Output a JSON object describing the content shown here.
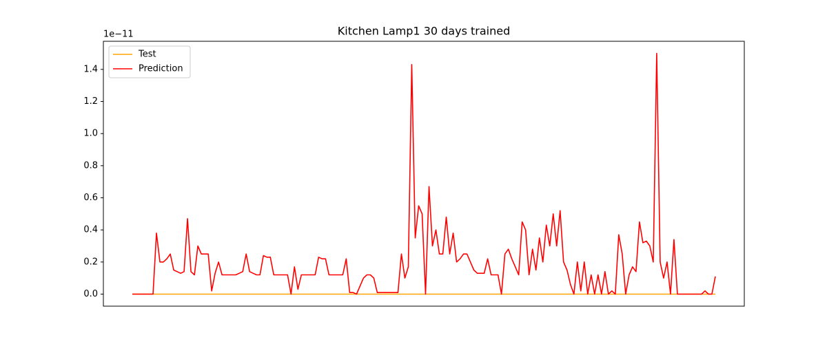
{
  "chart_data": {
    "type": "line",
    "title": "Kitchen Lamp1 30 days trained",
    "y_offset_label": "1e−11",
    "ylim": [
      -0.075,
      1.575
    ],
    "yticks": [
      {
        "value": 0,
        "label": "0.0"
      },
      0.2,
      0.4,
      0.6,
      0.8,
      {
        "value": 1,
        "label": "1.0"
      },
      1.2,
      1.4
    ],
    "legend": "upper left",
    "grid": false,
    "series": [
      {
        "name": "Test",
        "color": "#ffa500",
        "values": [
          0,
          0,
          0,
          0,
          0,
          0,
          0,
          0,
          0,
          0,
          0,
          0,
          0,
          0,
          0,
          0,
          0,
          0,
          0,
          0,
          0,
          0,
          0,
          0,
          0,
          0,
          0,
          0,
          0,
          0,
          0,
          0,
          0,
          0,
          0,
          0,
          0,
          0,
          0,
          0,
          0,
          0,
          0,
          0,
          0,
          0,
          0,
          0,
          0,
          0,
          0,
          0,
          0,
          0,
          0,
          0,
          0,
          0,
          0,
          0,
          0,
          0,
          0,
          0,
          0,
          0,
          0,
          0,
          0,
          0,
          0,
          0,
          0,
          0,
          0,
          0,
          0,
          0,
          0,
          0,
          0,
          0,
          0,
          0,
          0,
          0,
          0,
          0,
          0,
          0,
          0,
          0,
          0,
          0,
          0,
          0,
          0,
          0,
          0,
          0,
          0,
          0,
          0,
          0,
          0,
          0,
          0,
          0,
          0,
          0,
          0,
          0,
          0,
          0,
          0,
          0,
          0,
          0,
          0,
          0,
          0,
          0,
          0,
          0,
          0,
          0,
          0,
          0,
          0,
          0,
          0,
          0,
          0,
          0,
          0,
          0,
          0,
          0,
          0,
          0,
          0,
          0,
          0,
          0,
          0,
          0,
          0,
          0,
          0,
          0,
          0,
          0,
          0,
          0,
          0,
          0,
          0,
          0,
          0,
          0,
          0,
          0,
          0,
          0,
          0,
          0,
          0,
          0,
          0,
          0
        ]
      },
      {
        "name": "Prediction",
        "color": "#ff0000",
        "values": [
          0,
          0,
          0,
          0,
          0,
          0,
          0,
          0.38,
          0.2,
          0.2,
          0.22,
          0.25,
          0.15,
          0.14,
          0.13,
          0.14,
          0.47,
          0.14,
          0.12,
          0.3,
          0.25,
          0.25,
          0.25,
          0.02,
          0.13,
          0.2,
          0.12,
          0.12,
          0.12,
          0.12,
          0.12,
          0.13,
          0.14,
          0.25,
          0.14,
          0.13,
          0.12,
          0.12,
          0.24,
          0.23,
          0.23,
          0.12,
          0.12,
          0.12,
          0.12,
          0.12,
          0,
          0.17,
          0.03,
          0.12,
          0.12,
          0.12,
          0.12,
          0.12,
          0.23,
          0.22,
          0.22,
          0.12,
          0.12,
          0.12,
          0.12,
          0.12,
          0.22,
          0.01,
          0.01,
          0,
          0.05,
          0.1,
          0.12,
          0.12,
          0.1,
          0.01,
          0.01,
          0.01,
          0.01,
          0.01,
          0.01,
          0.01,
          0.25,
          0.1,
          0.17,
          1.43,
          0.35,
          0.55,
          0.5,
          0,
          0.67,
          0.3,
          0.4,
          0.25,
          0.25,
          0.48,
          0.25,
          0.38,
          0.2,
          0.22,
          0.25,
          0.25,
          0.2,
          0.15,
          0.13,
          0.13,
          0.13,
          0.22,
          0.12,
          0.12,
          0.12,
          0,
          0.25,
          0.28,
          0.22,
          0.17,
          0.12,
          0.45,
          0.4,
          0.12,
          0.28,
          0.15,
          0.35,
          0.2,
          0.43,
          0.3,
          0.5,
          0.3,
          0.52,
          0.2,
          0.15,
          0.06,
          0,
          0.2,
          0.02,
          0.2,
          0,
          0.12,
          0,
          0.12,
          0,
          0.14,
          0,
          0.02,
          0,
          0.37,
          0.25,
          0,
          0.12,
          0.17,
          0.14,
          0.45,
          0.32,
          0.33,
          0.3,
          0.2,
          1.5,
          0.2,
          0.1,
          0.2,
          0,
          0.34,
          0,
          0,
          0,
          0,
          0,
          0,
          0,
          0,
          0.02,
          0,
          0,
          0.11
        ]
      }
    ]
  }
}
